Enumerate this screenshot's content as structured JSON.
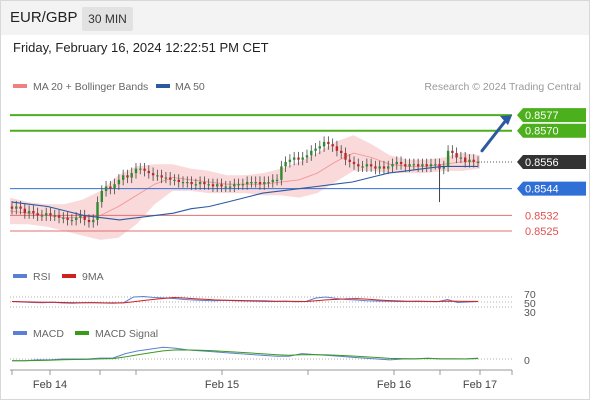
{
  "header": {
    "symbol": "EUR/GBP",
    "timeframe": "30 MIN"
  },
  "datetime": "Friday, February 16, 2024 12:22:51 PM CET",
  "legend": {
    "bollinger": {
      "label": "MA 20 + Bollinger Bands",
      "color": "#f08080"
    },
    "ma50": {
      "label": "MA 50",
      "color": "#2b5aa0"
    }
  },
  "credit": "Research © 2024 Trading Central",
  "colors": {
    "up": "#2e8b2e",
    "down": "#c0272d",
    "green_level": "#4caf1c",
    "blue_level": "#2f6fd6",
    "red_level": "#e07070",
    "current": "#333333",
    "arrow": "#2b5aa0"
  },
  "chart_data": [
    {
      "type": "candlestick",
      "title": "EUR/GBP 30 MIN",
      "ylim": [
        0.8512,
        0.8582
      ],
      "x_tick_labels": [
        "Feb 14",
        "Feb 15",
        "Feb 16",
        "Feb 17"
      ],
      "current_price": "0.8556",
      "levels": [
        {
          "value": "0.8577",
          "kind": "resistance",
          "color": "#4caf1c"
        },
        {
          "value": "0.8570",
          "kind": "resistance",
          "color": "#4caf1c"
        },
        {
          "value": "0.8544",
          "kind": "pivot",
          "color": "#2f6fd6"
        },
        {
          "value": "0.8532",
          "kind": "support",
          "color": "#e07070"
        },
        {
          "value": "0.8525",
          "kind": "support",
          "color": "#e07070"
        }
      ],
      "close_path": [
        0.8535,
        0.8536,
        0.8535,
        0.8533,
        0.8534,
        0.8533,
        0.8532,
        0.8532,
        0.8533,
        0.8532,
        0.8532,
        0.8531,
        0.8531,
        0.853,
        0.853,
        0.8531,
        0.8532,
        0.853,
        0.8529,
        0.853,
        0.8538,
        0.8543,
        0.8545,
        0.8544,
        0.8546,
        0.8548,
        0.855,
        0.8549,
        0.8551,
        0.8553,
        0.8553,
        0.8552,
        0.8551,
        0.855,
        0.855,
        0.8549,
        0.8549,
        0.8548,
        0.8548,
        0.8547,
        0.8547,
        0.8547,
        0.8546,
        0.8546,
        0.8547,
        0.8546,
        0.8546,
        0.8545,
        0.8546,
        0.8545,
        0.8545,
        0.8545,
        0.8546,
        0.8546,
        0.8546,
        0.8547,
        0.8547,
        0.8547,
        0.8546,
        0.8547,
        0.8547,
        0.8548,
        0.8548,
        0.8554,
        0.8556,
        0.8557,
        0.8558,
        0.8557,
        0.8558,
        0.8559,
        0.8561,
        0.8562,
        0.8563,
        0.8565,
        0.8564,
        0.8563,
        0.8561,
        0.856,
        0.8557,
        0.8556,
        0.8555,
        0.8554,
        0.8554,
        0.8555,
        0.8554,
        0.8553,
        0.8554,
        0.8553,
        0.8554,
        0.8555,
        0.8556,
        0.8555,
        0.8554,
        0.8555,
        0.8555,
        0.8554,
        0.8555,
        0.8554,
        0.8555,
        0.8555,
        0.8553,
        0.8554,
        0.8561,
        0.856,
        0.8558,
        0.8558,
        0.8556,
        0.8557,
        0.8556,
        0.8556
      ],
      "ma50": [
        0.8538,
        0.8537,
        0.8536,
        0.8534,
        0.8532,
        0.8531,
        0.853,
        0.8531,
        0.8532,
        0.8533,
        0.8535,
        0.8536,
        0.8538,
        0.854,
        0.8542,
        0.8543,
        0.8544,
        0.8545,
        0.8546,
        0.8547,
        0.8549,
        0.8551,
        0.8552,
        0.8553,
        0.8554,
        0.8554,
        0.8554
      ],
      "bollinger_mid": [
        0.8534,
        0.8533,
        0.8532,
        0.8531,
        0.8531,
        0.8532,
        0.8536,
        0.8541,
        0.8546,
        0.8549,
        0.8548,
        0.8547,
        0.8546,
        0.8546,
        0.8546,
        0.8547,
        0.8548,
        0.8551,
        0.8556,
        0.856,
        0.8558,
        0.8555,
        0.8554,
        0.8554,
        0.8555,
        0.8556,
        0.8556
      ]
    },
    {
      "type": "line",
      "title": "RSI",
      "series": [
        {
          "name": "RSI",
          "color": "#5b7fd6"
        },
        {
          "name": "9MA",
          "color": "#d02020"
        }
      ],
      "y_tick_labels": [
        "70",
        "50",
        "30"
      ]
    },
    {
      "type": "line",
      "title": "MACD",
      "series": [
        {
          "name": "MACD",
          "color": "#5b7fd6"
        },
        {
          "name": "MACD Signal",
          "color": "#3a9a1a"
        }
      ],
      "y_tick_labels": [
        "0"
      ]
    }
  ]
}
